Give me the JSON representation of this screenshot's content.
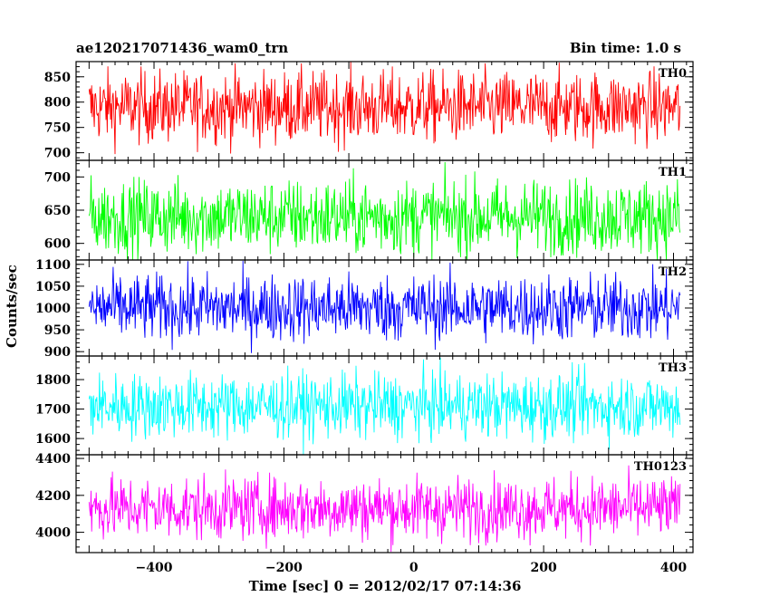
{
  "header": {
    "left_title": "ae120217071436_wam0_trn",
    "right_title": "Bin time: 1.0 s"
  },
  "chart_data": {
    "type": "line",
    "xlabel": "Time [sec] 0 = 2012/02/17 07:14:36",
    "ylabel": "Counts/sec",
    "xlim": [
      -520,
      430
    ],
    "x_ticks": [
      -400,
      -200,
      0,
      200,
      400
    ],
    "x_tick_labels": [
      "−400",
      "−200",
      "0",
      "200",
      "400"
    ],
    "x_range_of_data": [
      -500,
      410
    ],
    "bin_time_s": 1.0,
    "panels": [
      {
        "name": "TH0",
        "color": "#ff0000",
        "ylim": [
          685,
          880
        ],
        "y_ticks": [
          700,
          750,
          800,
          850
        ],
        "mean": 790,
        "spread": 35
      },
      {
        "name": "TH1",
        "color": "#00ff00",
        "ylim": [
          575,
          725
        ],
        "y_ticks": [
          600,
          650,
          700
        ],
        "mean": 640,
        "spread": 28
      },
      {
        "name": "TH2",
        "color": "#0000ff",
        "ylim": [
          890,
          1110
        ],
        "y_ticks": [
          900,
          950,
          1000,
          1050,
          1100
        ],
        "mean": 1000,
        "spread": 38
      },
      {
        "name": "TH3",
        "color": "#00ffff",
        "ylim": [
          1545,
          1880
        ],
        "y_ticks": [
          1600,
          1700,
          1800
        ],
        "mean": 1710,
        "spread": 55
      },
      {
        "name": "TH0123",
        "color": "#ff00ff",
        "ylim": [
          3890,
          4420
        ],
        "y_ticks": [
          4000,
          4200,
          4400
        ],
        "mean": 4130,
        "spread": 85
      }
    ]
  }
}
